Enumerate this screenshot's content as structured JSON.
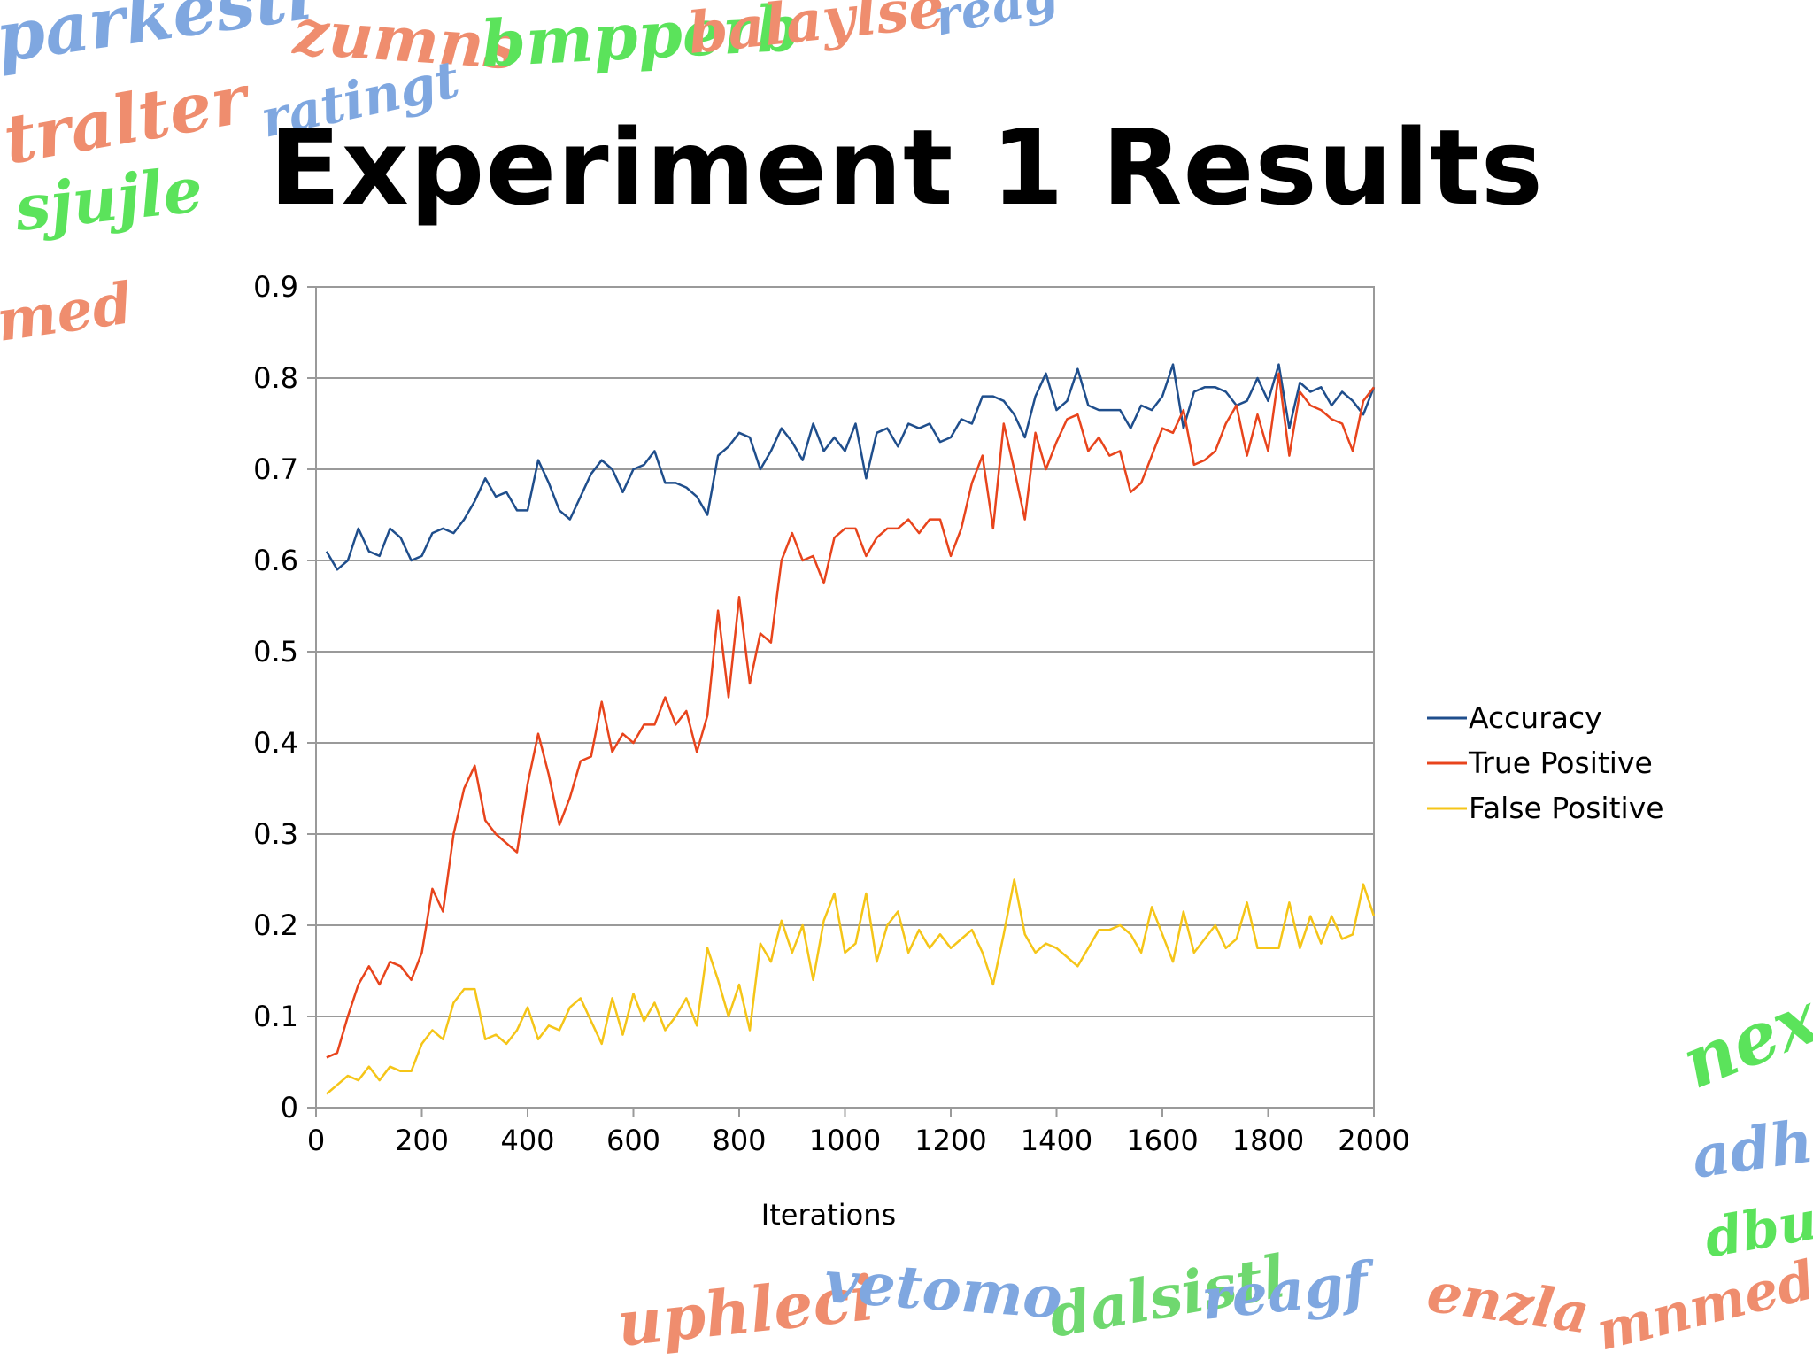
{
  "slide": {
    "title": "Experiment 1 Results",
    "decorative_words": [
      "parkesti",
      "zumns",
      "bmpperb",
      "balaylse",
      "reag",
      "tralter",
      "ratingt",
      "sjujle",
      "med",
      "uphleci",
      "vetomo",
      "dalsistl",
      "reagf",
      "enzla",
      "mnmed",
      "nexo",
      "adha",
      "dbu"
    ]
  },
  "chart_data": {
    "type": "line",
    "xlabel": "Iterations",
    "ylabel": "",
    "xlim": [
      0,
      2000
    ],
    "ylim": [
      0,
      0.9
    ],
    "xticks": [
      "0",
      "200",
      "400",
      "600",
      "800",
      "1000",
      "1200",
      "1400",
      "1600",
      "1800",
      "2000"
    ],
    "yticks": [
      "0",
      "0.1",
      "0.2",
      "0.3",
      "0.4",
      "0.5",
      "0.6",
      "0.7",
      "0.8",
      "0.9"
    ],
    "grid": "horizontal",
    "legend_position": "right",
    "x": [
      20,
      40,
      60,
      80,
      100,
      120,
      140,
      160,
      180,
      200,
      220,
      240,
      260,
      280,
      300,
      320,
      340,
      360,
      380,
      400,
      420,
      440,
      460,
      480,
      500,
      520,
      540,
      560,
      580,
      600,
      620,
      640,
      660,
      680,
      700,
      720,
      740,
      760,
      780,
      800,
      820,
      840,
      860,
      880,
      900,
      920,
      940,
      960,
      980,
      1000,
      1020,
      1040,
      1060,
      1080,
      1100,
      1120,
      1140,
      1160,
      1180,
      1200,
      1220,
      1240,
      1260,
      1280,
      1300,
      1320,
      1340,
      1360,
      1380,
      1400,
      1420,
      1440,
      1460,
      1480,
      1500,
      1520,
      1540,
      1560,
      1580,
      1600,
      1620,
      1640,
      1660,
      1680,
      1700,
      1720,
      1740,
      1760,
      1780,
      1800,
      1820,
      1840,
      1860,
      1880,
      1900,
      1920,
      1940,
      1960,
      1980,
      2000
    ],
    "series": [
      {
        "name": "Accuracy",
        "color": "#1f4e8c",
        "values": [
          0.61,
          0.59,
          0.6,
          0.635,
          0.61,
          0.605,
          0.635,
          0.625,
          0.6,
          0.605,
          0.63,
          0.635,
          0.63,
          0.645,
          0.665,
          0.69,
          0.67,
          0.675,
          0.655,
          0.655,
          0.71,
          0.685,
          0.655,
          0.645,
          0.67,
          0.695,
          0.71,
          0.7,
          0.675,
          0.7,
          0.705,
          0.72,
          0.685,
          0.685,
          0.68,
          0.67,
          0.65,
          0.715,
          0.725,
          0.74,
          0.735,
          0.7,
          0.72,
          0.745,
          0.73,
          0.71,
          0.75,
          0.72,
          0.735,
          0.72,
          0.75,
          0.69,
          0.74,
          0.745,
          0.725,
          0.75,
          0.745,
          0.75,
          0.73,
          0.735,
          0.755,
          0.75,
          0.78,
          0.78,
          0.775,
          0.76,
          0.735,
          0.78,
          0.805,
          0.765,
          0.775,
          0.81,
          0.77,
          0.765,
          0.765,
          0.765,
          0.745,
          0.77,
          0.765,
          0.78,
          0.815,
          0.745,
          0.785,
          0.79,
          0.79,
          0.785,
          0.77,
          0.775,
          0.8,
          0.775,
          0.815,
          0.745,
          0.795,
          0.785,
          0.79,
          0.77,
          0.785,
          0.775,
          0.76,
          0.79
        ]
      },
      {
        "name": "True Positive",
        "color": "#e8441c",
        "values": [
          0.055,
          0.06,
          0.1,
          0.135,
          0.155,
          0.135,
          0.16,
          0.155,
          0.14,
          0.17,
          0.24,
          0.215,
          0.3,
          0.35,
          0.375,
          0.315,
          0.3,
          0.29,
          0.28,
          0.355,
          0.41,
          0.365,
          0.31,
          0.34,
          0.38,
          0.385,
          0.445,
          0.39,
          0.41,
          0.4,
          0.42,
          0.42,
          0.45,
          0.42,
          0.435,
          0.39,
          0.43,
          0.545,
          0.45,
          0.56,
          0.465,
          0.52,
          0.51,
          0.6,
          0.63,
          0.6,
          0.605,
          0.575,
          0.625,
          0.635,
          0.635,
          0.605,
          0.625,
          0.635,
          0.635,
          0.645,
          0.63,
          0.645,
          0.645,
          0.605,
          0.635,
          0.685,
          0.715,
          0.635,
          0.75,
          0.7,
          0.645,
          0.74,
          0.7,
          0.73,
          0.755,
          0.76,
          0.72,
          0.735,
          0.715,
          0.72,
          0.675,
          0.685,
          0.715,
          0.745,
          0.74,
          0.765,
          0.705,
          0.71,
          0.72,
          0.75,
          0.77,
          0.715,
          0.76,
          0.72,
          0.805,
          0.715,
          0.785,
          0.77,
          0.765,
          0.755,
          0.75,
          0.72,
          0.775,
          0.79
        ]
      },
      {
        "name": "False Positive",
        "color": "#f5c518",
        "values": [
          0.015,
          0.025,
          0.035,
          0.03,
          0.045,
          0.03,
          0.045,
          0.04,
          0.04,
          0.07,
          0.085,
          0.075,
          0.115,
          0.13,
          0.13,
          0.075,
          0.08,
          0.07,
          0.085,
          0.11,
          0.075,
          0.09,
          0.085,
          0.11,
          0.12,
          0.095,
          0.07,
          0.12,
          0.08,
          0.125,
          0.095,
          0.115,
          0.085,
          0.1,
          0.12,
          0.09,
          0.175,
          0.14,
          0.1,
          0.135,
          0.085,
          0.18,
          0.16,
          0.205,
          0.17,
          0.2,
          0.14,
          0.205,
          0.235,
          0.17,
          0.18,
          0.235,
          0.16,
          0.2,
          0.215,
          0.17,
          0.195,
          0.175,
          0.19,
          0.175,
          0.185,
          0.195,
          0.17,
          0.135,
          0.19,
          0.25,
          0.19,
          0.17,
          0.18,
          0.175,
          0.165,
          0.155,
          0.175,
          0.195,
          0.195,
          0.2,
          0.19,
          0.17,
          0.22,
          0.19,
          0.16,
          0.215,
          0.17,
          0.185,
          0.2,
          0.175,
          0.185,
          0.225,
          0.175,
          0.175,
          0.175,
          0.225,
          0.175,
          0.21,
          0.18,
          0.21,
          0.185,
          0.19,
          0.245,
          0.21
        ]
      }
    ]
  }
}
